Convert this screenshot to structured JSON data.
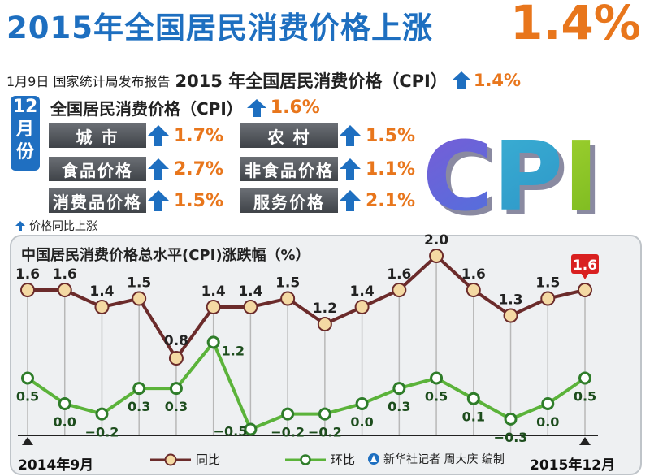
{
  "header": {
    "title": "2015年全国居民消费价格上涨",
    "title_value": "1.4%",
    "subtitle_source": "1月9日 国家统计局发布报告",
    "subtitle_main": "2015 年全国居民消费价格（CPI）",
    "subtitle_value": "1.4%"
  },
  "december": {
    "tag": [
      "12",
      "月",
      "份"
    ],
    "cpi_label": "全国居民消费价格（CPI）",
    "cpi_value": "1.6%",
    "items": [
      {
        "label": "城  市",
        "value": "1.7%"
      },
      {
        "label": "农  村",
        "value": "1.5%"
      },
      {
        "label": "食品价格",
        "value": "2.7%"
      },
      {
        "label": "非食品价格",
        "value": "1.1%"
      },
      {
        "label": "消费品价格",
        "value": "1.5%"
      },
      {
        "label": "服务价格",
        "value": "2.1%"
      }
    ],
    "legend_note": "价格同比上涨"
  },
  "decor": {
    "cpi_letters": "CPI"
  },
  "colors": {
    "blue": "#1e6fc0",
    "orange": "#e8761c",
    "yoy": "#6b2b2b",
    "mom": "#5bb33a",
    "highlight": "#d92020"
  },
  "chart_data": {
    "type": "line",
    "title": "中国居民消费价格总水平(CPI)涨跌幅（%）",
    "x_start_label": "2014年9月",
    "x_end_label": "2015年12月",
    "x_count": 16,
    "series": [
      {
        "name": "同比",
        "values": [
          1.6,
          1.6,
          1.4,
          1.5,
          0.8,
          1.4,
          1.4,
          1.5,
          1.2,
          1.4,
          1.6,
          2.0,
          1.6,
          1.3,
          1.5,
          1.6
        ]
      },
      {
        "name": "环比",
        "values": [
          0.5,
          0.0,
          -0.2,
          0.3,
          0.3,
          1.2,
          -0.5,
          -0.2,
          -0.2,
          0.0,
          0.3,
          0.5,
          0.1,
          -0.3,
          0.0,
          0.5
        ]
      }
    ],
    "labels_yoy": [
      "1.6",
      "1.6",
      "1.4",
      "1.5",
      "0.8",
      "1.4",
      "1.4",
      "1.5",
      "1.2",
      "1.4",
      "1.6",
      "2.0",
      "1.6",
      "1.3",
      "1.5",
      "1.6"
    ],
    "labels_mom": [
      "0.5",
      "0.0",
      "−0.2",
      "0.3",
      "0.3",
      "1.2",
      "−0.5",
      "−0.2",
      "−0.2",
      "0.0",
      "0.3",
      "0.5",
      "0.1",
      "−0.3",
      "0.0",
      "0.5"
    ],
    "credit": "新华社记者 周大庆 编制"
  }
}
